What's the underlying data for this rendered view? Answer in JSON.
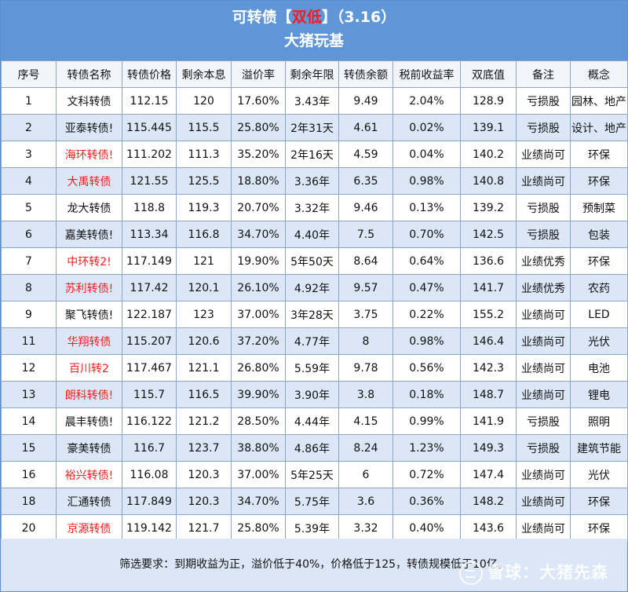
{
  "title": {
    "prefix": "可转债【",
    "highlight": "双低",
    "suffix": "】（3.16）",
    "subtitle": "大猪玩基"
  },
  "columns": [
    "序号",
    "转债名称",
    "转债价格",
    "剩余本息",
    "溢价率",
    "剩余年限",
    "转债余额",
    "税前收益率",
    "双底值",
    "备注",
    "概念"
  ],
  "rows": [
    {
      "no": "1",
      "name": "文科转债",
      "red": false,
      "price": "112.15",
      "remain": "120",
      "premium": "17.60%",
      "years": "3.43年",
      "balance": "9.49",
      "yield": "2.04%",
      "dual": "128.9",
      "note": "亏损股",
      "concept": "园林、地产"
    },
    {
      "no": "2",
      "name": "亚泰转债!",
      "red": false,
      "price": "115.445",
      "remain": "115.5",
      "premium": "25.80%",
      "years": "2年31天",
      "balance": "4.61",
      "yield": "0.02%",
      "dual": "139.1",
      "note": "亏损股",
      "concept": "设计、地产"
    },
    {
      "no": "3",
      "name": "海环转债!",
      "red": true,
      "price": "111.202",
      "remain": "111.3",
      "premium": "35.20%",
      "years": "2年16天",
      "balance": "4.59",
      "yield": "0.04%",
      "dual": "140.2",
      "note": "业绩尚可",
      "concept": "环保"
    },
    {
      "no": "4",
      "name": "大禹转债",
      "red": true,
      "price": "121.55",
      "remain": "125.5",
      "premium": "18.80%",
      "years": "3.36年",
      "balance": "6.35",
      "yield": "0.98%",
      "dual": "140.8",
      "note": "业绩尚可",
      "concept": "环保"
    },
    {
      "no": "5",
      "name": "龙大转债",
      "red": false,
      "price": "118.8",
      "remain": "119.3",
      "premium": "20.70%",
      "years": "3.32年",
      "balance": "9.46",
      "yield": "0.13%",
      "dual": "139.2",
      "note": "亏损股",
      "concept": "预制菜"
    },
    {
      "no": "6",
      "name": "嘉美转债!",
      "red": false,
      "price": "113.34",
      "remain": "116.8",
      "premium": "34.70%",
      "years": "4.40年",
      "balance": "7.5",
      "yield": "0.70%",
      "dual": "142.5",
      "note": "亏损股",
      "concept": "包装"
    },
    {
      "no": "7",
      "name": "中环转2!",
      "red": true,
      "price": "117.149",
      "remain": "121",
      "premium": "19.90%",
      "years": "5年50天",
      "balance": "8.64",
      "yield": "0.64%",
      "dual": "136.6",
      "note": "业绩优秀",
      "concept": "环保"
    },
    {
      "no": "8",
      "name": "苏利转债!",
      "red": true,
      "price": "117.42",
      "remain": "120.1",
      "premium": "26.10%",
      "years": "4.92年",
      "balance": "9.57",
      "yield": "0.47%",
      "dual": "141.7",
      "note": "业绩优秀",
      "concept": "农药"
    },
    {
      "no": "9",
      "name": "聚飞转债!",
      "red": false,
      "price": "122.187",
      "remain": "123",
      "premium": "37.00%",
      "years": "3年28天",
      "balance": "3.75",
      "yield": "0.22%",
      "dual": "155.2",
      "note": "业绩尚可",
      "concept": "LED"
    },
    {
      "no": "11",
      "name": "华翔转债",
      "red": true,
      "price": "115.207",
      "remain": "120.6",
      "premium": "37.20%",
      "years": "4.77年",
      "balance": "8",
      "yield": "0.98%",
      "dual": "146.4",
      "note": "业绩尚可",
      "concept": "光伏"
    },
    {
      "no": "12",
      "name": "百川转2",
      "red": true,
      "price": "117.467",
      "remain": "121.1",
      "premium": "26.80%",
      "years": "5.59年",
      "balance": "9.78",
      "yield": "0.56%",
      "dual": "142.3",
      "note": "业绩尚可",
      "concept": "电池"
    },
    {
      "no": "13",
      "name": "朗科转债!",
      "red": true,
      "price": "115.7",
      "remain": "116.5",
      "premium": "39.90%",
      "years": "3.90年",
      "balance": "3.8",
      "yield": "0.18%",
      "dual": "148.7",
      "note": "业绩尚可",
      "concept": "锂电"
    },
    {
      "no": "14",
      "name": "晨丰转债!",
      "red": false,
      "price": "116.122",
      "remain": "121.2",
      "premium": "28.50%",
      "years": "4.44年",
      "balance": "4.15",
      "yield": "0.99%",
      "dual": "141.9",
      "note": "亏损股",
      "concept": "照明"
    },
    {
      "no": "15",
      "name": "豪美转债",
      "red": false,
      "price": "116.7",
      "remain": "123.7",
      "premium": "38.80%",
      "years": "4.86年",
      "balance": "8.24",
      "yield": "1.23%",
      "dual": "149.3",
      "note": "亏损股",
      "concept": "建筑节能"
    },
    {
      "no": "16",
      "name": "裕兴转债!",
      "red": true,
      "price": "116.08",
      "remain": "120.3",
      "premium": "37.00%",
      "years": "5年25天",
      "balance": "6",
      "yield": "0.72%",
      "dual": "147.4",
      "note": "业绩尚可",
      "concept": "光伏"
    },
    {
      "no": "18",
      "name": "汇通转债",
      "red": false,
      "price": "117.849",
      "remain": "120.3",
      "premium": "34.70%",
      "years": "5.75年",
      "balance": "3.6",
      "yield": "0.36%",
      "dual": "148.2",
      "note": "业绩尚可",
      "concept": "环保"
    },
    {
      "no": "20",
      "name": "京源转债",
      "red": true,
      "price": "119.142",
      "remain": "121.7",
      "premium": "25.80%",
      "years": "5.39年",
      "balance": "3.32",
      "yield": "0.40%",
      "dual": "143.6",
      "note": "业绩尚可",
      "concept": "环保"
    }
  ],
  "footer": {
    "note": "筛选要求：到期收益为正，溢价低于40%，价格低于125，转债规模低于10亿。"
  },
  "watermark": "雪球：大猪先森",
  "colors": {
    "header_bg": "#5f96d8",
    "highlight": "#ff1a1a",
    "row_alt": "#dbe7f6"
  }
}
